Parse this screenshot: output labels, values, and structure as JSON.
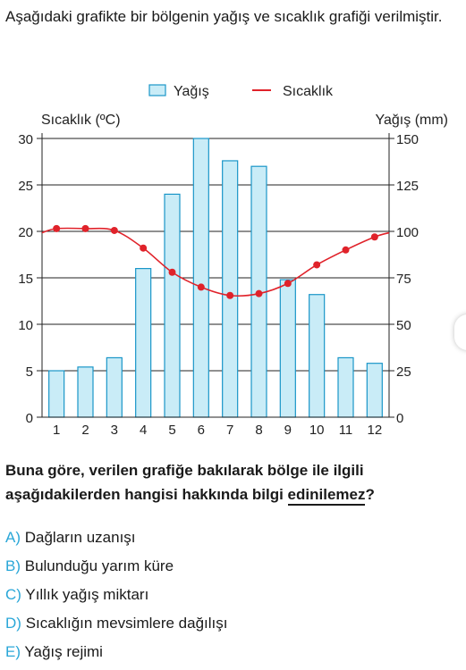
{
  "intro_text": "Aşağıdaki grafikte bir bölgenin yağış ve sıcaklık grafiği verilmiştir.",
  "chart_data": {
    "type": "bar",
    "categories": [
      "1",
      "2",
      "3",
      "4",
      "5",
      "6",
      "7",
      "8",
      "9",
      "10",
      "11",
      "12"
    ],
    "series": [
      {
        "name": "Yağış",
        "kind": "bar",
        "axis": "right",
        "values": [
          25,
          27,
          32,
          80,
          120,
          150,
          138,
          135,
          74,
          66,
          32,
          29
        ]
      },
      {
        "name": "Sıcaklık",
        "kind": "line",
        "axis": "left",
        "values": [
          20.3,
          20.3,
          20.1,
          18.2,
          15.6,
          14.0,
          13.1,
          13.3,
          14.4,
          16.4,
          18.0,
          19.4
        ]
      }
    ],
    "y_left": {
      "label": "Sıcaklık (ºC)",
      "ticks": [
        "0",
        "5",
        "10",
        "15",
        "20",
        "25",
        "30"
      ],
      "range": [
        0,
        30
      ]
    },
    "y_right": {
      "label": "Yağış (mm)",
      "ticks": [
        "0",
        "25",
        "50",
        "75",
        "100",
        "125",
        "150"
      ],
      "range": [
        0,
        150
      ]
    },
    "legend": {
      "placement": "top-center",
      "items": [
        "Yağış",
        "Sıcaklık"
      ]
    },
    "grid": true,
    "colors": {
      "bar_fill": "#c9ecf7",
      "bar_stroke": "#1a96c8",
      "line": "#e0222a"
    }
  },
  "question": {
    "text_before": "Buna göre, verilen grafiğe bakılarak bölge ile ilgili aşağıdakilerden hangisi hakkında bilgi ",
    "emphasis": "edinilemez",
    "text_after": "?"
  },
  "options": [
    {
      "letter": "A)",
      "text": "Dağların uzanışı"
    },
    {
      "letter": "B)",
      "text": "Bulunduğu yarım küre"
    },
    {
      "letter": "C)",
      "text": "Yıllık yağış miktarı"
    },
    {
      "letter": "D)",
      "text": "Sıcaklığın mevsimlere dağılışı"
    },
    {
      "letter": "E)",
      "text": "Yağış rejimi"
    }
  ]
}
